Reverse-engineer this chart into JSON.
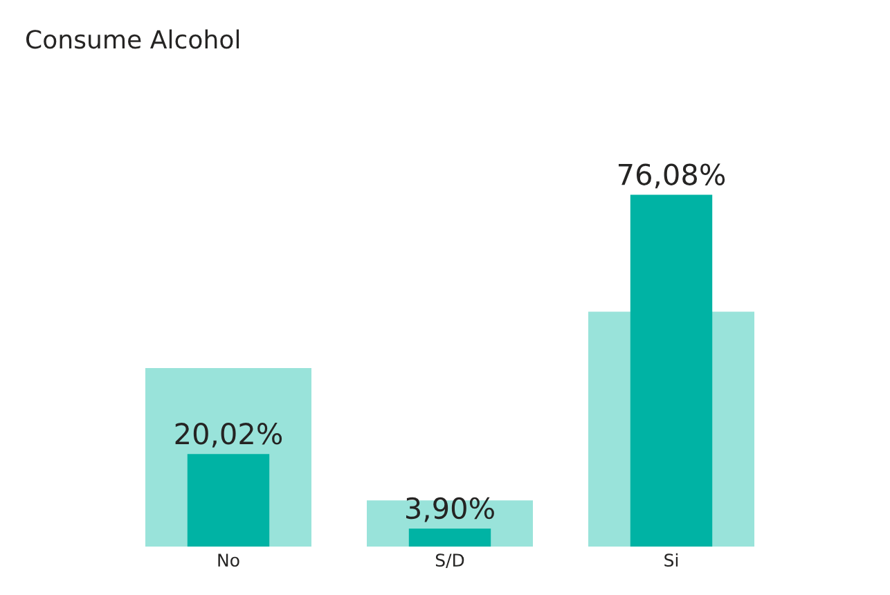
{
  "chart_data": {
    "type": "bar",
    "title": "Consume Alcohol",
    "categories": [
      "No",
      "S/D",
      "Si"
    ],
    "series": [
      {
        "color": "#99e3da",
        "values": [
          38.6,
          10.0,
          50.8
        ]
      },
      {
        "color": "#00b3a4",
        "values": [
          20.02,
          3.9,
          76.08
        ],
        "value_labels": [
          "20,02%",
          "3,90%",
          "76,08%"
        ]
      }
    ]
  }
}
